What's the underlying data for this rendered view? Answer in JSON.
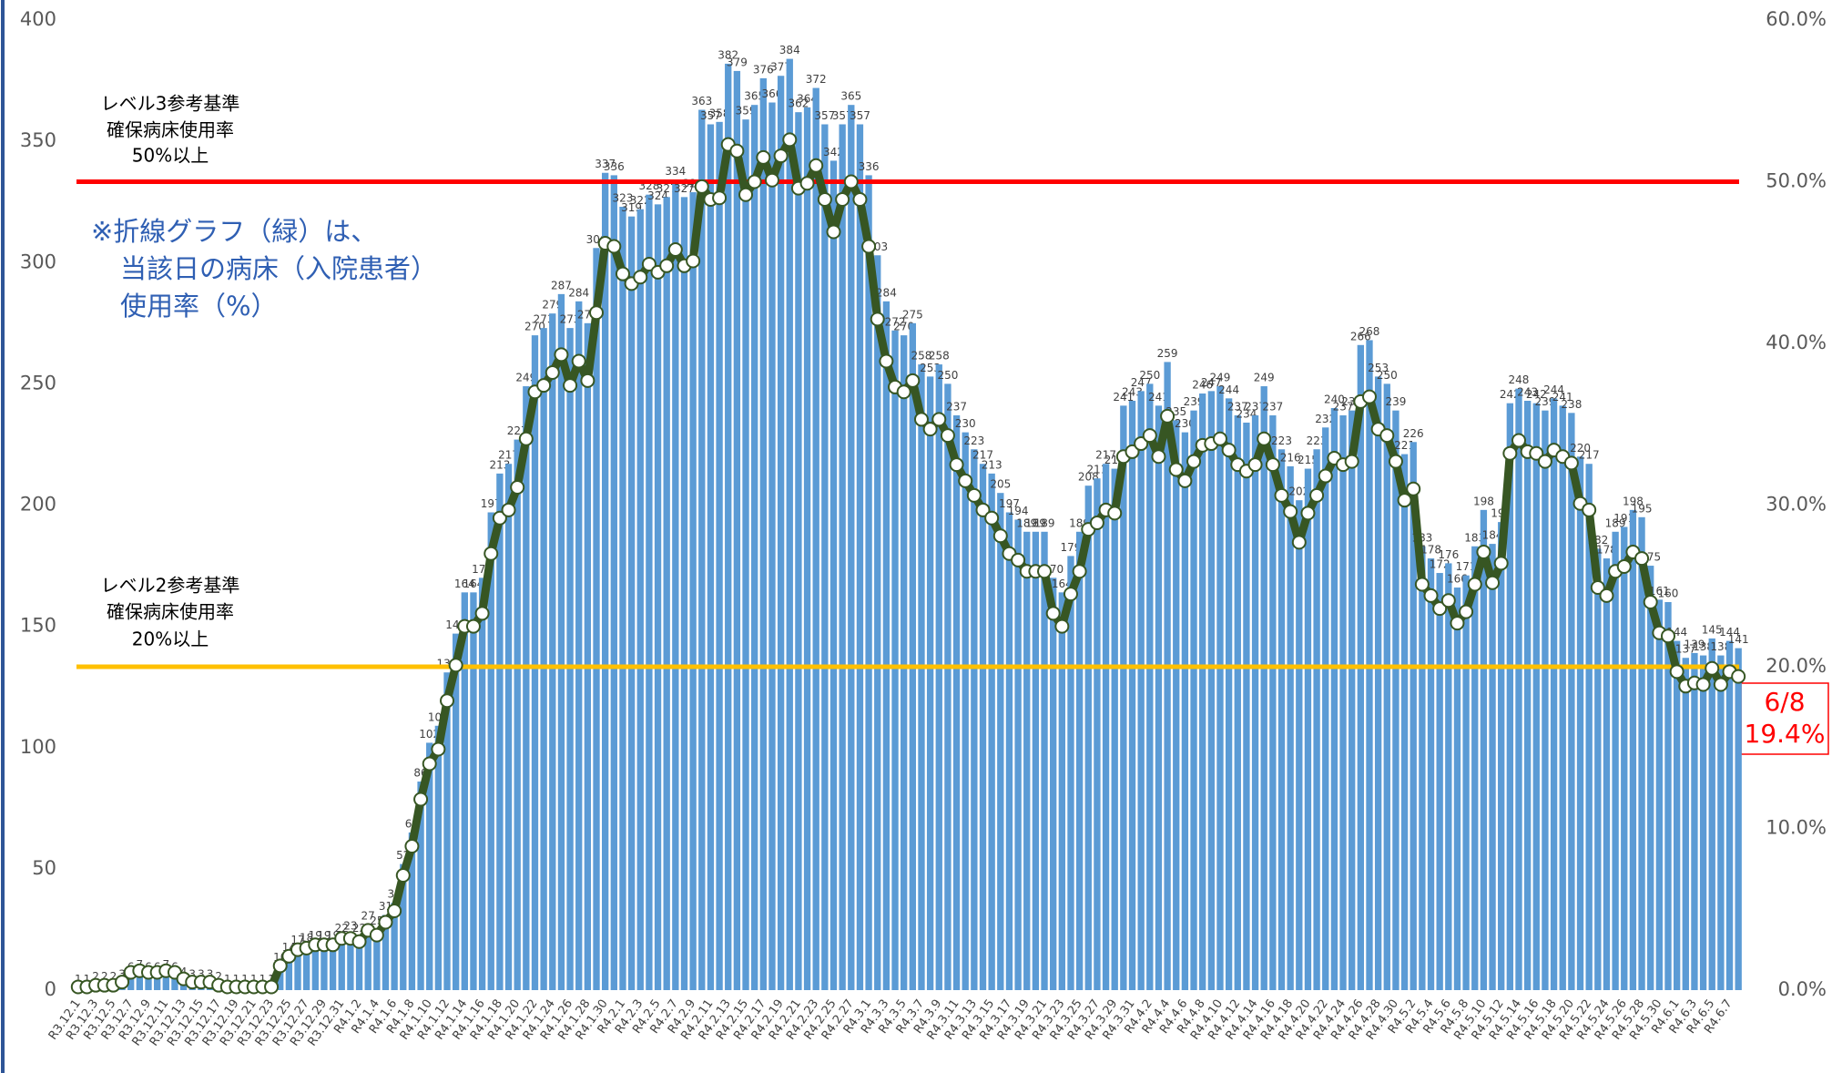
{
  "chart_data": {
    "type": "bar-line",
    "categories": [
      "R3.12.1",
      null,
      "R3.12.3",
      null,
      "R3.12.5",
      null,
      "R3.12.7",
      null,
      "R3.12.9",
      null,
      "R3.12.11",
      null,
      "R3.12.13",
      null,
      "R3.12.15",
      null,
      "R3.12.17",
      null,
      "R3.12.19",
      null,
      "R3.12.21",
      null,
      "R3.12.23",
      null,
      "R3.12.25",
      null,
      "R3.12.27",
      null,
      "R3.12.29",
      null,
      "R3.12.31",
      null,
      "R4.1.2",
      null,
      "R4.1.4",
      null,
      "R4.1.6",
      null,
      "R4.1.8",
      null,
      "R4.1.10",
      null,
      "R4.1.12",
      null,
      "R4.1.14",
      null,
      "R4.1.16",
      null,
      "R4.1.18",
      null,
      "R4.1.20",
      null,
      "R4.1.22",
      null,
      "R4.1.24",
      null,
      "R4.1.26",
      null,
      "R4.1.28",
      null,
      "R4.1.30",
      null,
      "R4.2.1",
      null,
      "R4.2.3",
      null,
      "R4.2.5",
      null,
      "R4.2.7",
      null,
      "R4.2.9",
      null,
      "R4.2.11",
      null,
      "R4.2.13",
      null,
      "R4.2.15",
      null,
      "R4.2.17",
      null,
      "R4.2.19",
      null,
      "R4.2.21",
      null,
      "R4.2.23",
      null,
      "R4.2.25",
      null,
      "R4.2.27",
      null,
      "R4.3.1",
      null,
      "R4.3.3",
      null,
      "R4.3.5",
      null,
      "R4.3.7",
      null,
      "R4.3.9",
      null,
      "R4.3.11",
      null,
      "R4.3.13",
      null,
      "R4.3.15",
      null,
      "R4.3.17",
      null,
      "R4.3.19",
      null,
      "R4.3.21",
      null,
      "R4.3.23",
      null,
      "R4.3.25",
      null,
      "R4.3.27",
      null,
      "R4.3.29",
      null,
      "R4.3.31",
      null,
      "R4.4.2",
      null,
      "R4.4.4",
      null,
      "R4.4.6",
      null,
      "R4.4.8",
      null,
      "R4.4.10",
      null,
      "R4.4.12",
      null,
      "R4.4.14",
      null,
      "R4.4.16",
      null,
      "R4.4.18",
      null,
      "R4.4.20",
      null,
      "R4.4.22",
      null,
      "R4.4.24",
      null,
      "R4.4.26",
      null,
      "R4.4.28",
      null,
      "R4.4.30",
      null,
      "R4.5.2",
      null,
      "R4.5.4",
      null,
      "R4.5.6",
      null,
      "R4.5.8",
      null,
      "R4.5.10",
      null,
      "R4.5.12",
      null,
      "R4.5.14",
      null,
      "R4.5.16",
      null,
      "R4.5.18",
      null,
      "R4.5.20",
      null,
      "R4.5.22",
      null,
      "R4.5.24",
      null,
      "R4.5.26",
      null,
      "R4.5.28",
      null,
      "R4.5.30",
      null,
      "R4.6.1",
      null,
      "R4.6.3",
      null,
      "R4.6.5",
      null,
      "R4.6.7",
      null
    ],
    "series": [
      {
        "type": "bar",
        "color": "#5b9bd5",
        "values": [
          1,
          1,
          2,
          2,
          2,
          3,
          6,
          7,
          6,
          6,
          7,
          6,
          4,
          3,
          3,
          3,
          2,
          1,
          1,
          1,
          1,
          1,
          1,
          10,
          14,
          17,
          18,
          19,
          19,
          19,
          22,
          23,
          22,
          27,
          25,
          31,
          36,
          52,
          65,
          86,
          102,
          109,
          131,
          147,
          164,
          164,
          170,
          197,
          213,
          217,
          227,
          249,
          270,
          273,
          279,
          287,
          273,
          284,
          275,
          306,
          337,
          336,
          323,
          319,
          322,
          328,
          324,
          327,
          334,
          327,
          329,
          363,
          357,
          358,
          382,
          379,
          359,
          365,
          376,
          366,
          377,
          384,
          362,
          364,
          372,
          357,
          342,
          357,
          365,
          357,
          336,
          303,
          284,
          272,
          270,
          275,
          258,
          253,
          258,
          250,
          237,
          230,
          223,
          217,
          213,
          205,
          197,
          194,
          189,
          189,
          189,
          170,
          164,
          179,
          189,
          208,
          211,
          217,
          215,
          241,
          243,
          247,
          250,
          241,
          259,
          235,
          230,
          239,
          246,
          247,
          249,
          244,
          237,
          234,
          237,
          249,
          237,
          223,
          216,
          202,
          215,
          223,
          232,
          240,
          237,
          239,
          266,
          268,
          253,
          250,
          239,
          221,
          226,
          183,
          178,
          172,
          176,
          166,
          171,
          183,
          198,
          184,
          193,
          242,
          248,
          243,
          242,
          239,
          244,
          241,
          238,
          220,
          217,
          182,
          178,
          189,
          191,
          198,
          195,
          175,
          161,
          160,
          144,
          137,
          139,
          138,
          145,
          138,
          144,
          141
        ]
      },
      {
        "type": "line",
        "axis": "y2",
        "color": "#375623",
        "marker_fill": "#ffffff",
        "values": [
          0.2,
          0.2,
          0.3,
          0.3,
          0.3,
          0.5,
          1.1,
          1.2,
          1.1,
          1.1,
          1.2,
          1.1,
          0.7,
          0.5,
          0.5,
          0.5,
          0.3,
          0.2,
          0.2,
          0.2,
          0.2,
          0.2,
          0.2,
          1.5,
          2.1,
          2.5,
          2.6,
          2.8,
          2.8,
          2.8,
          3.2,
          3.2,
          3.0,
          3.7,
          3.4,
          4.2,
          4.9,
          7.1,
          8.9,
          11.8,
          14.0,
          14.9,
          17.9,
          20.1,
          22.5,
          22.5,
          23.3,
          27.0,
          29.2,
          29.7,
          31.1,
          34.1,
          37.0,
          37.4,
          38.2,
          39.3,
          37.4,
          38.9,
          37.7,
          41.9,
          46.2,
          46.0,
          44.3,
          43.7,
          44.1,
          44.9,
          44.4,
          44.8,
          45.8,
          44.8,
          45.1,
          49.7,
          48.9,
          49.0,
          52.3,
          51.9,
          49.2,
          50.0,
          51.5,
          50.1,
          51.6,
          52.6,
          49.6,
          49.9,
          51.0,
          48.9,
          46.9,
          48.9,
          50.0,
          48.9,
          46.0,
          41.5,
          38.9,
          37.3,
          37.0,
          37.7,
          35.3,
          34.7,
          35.3,
          34.3,
          32.5,
          31.5,
          30.6,
          29.7,
          29.2,
          28.1,
          27.0,
          26.6,
          25.9,
          25.9,
          25.9,
          23.3,
          22.5,
          24.5,
          25.9,
          28.5,
          28.9,
          29.7,
          29.5,
          33.0,
          33.3,
          33.8,
          34.3,
          33.0,
          35.5,
          32.2,
          31.5,
          32.7,
          33.7,
          33.8,
          34.1,
          33.4,
          32.5,
          32.1,
          32.5,
          34.1,
          32.5,
          30.6,
          29.6,
          27.7,
          29.5,
          30.6,
          31.8,
          32.9,
          32.5,
          32.7,
          36.4,
          36.7,
          34.7,
          34.3,
          32.7,
          30.3,
          31.0,
          25.1,
          24.4,
          23.6,
          24.1,
          22.7,
          23.4,
          25.1,
          27.1,
          25.2,
          26.4,
          33.2,
          34.0,
          33.3,
          33.2,
          32.7,
          33.4,
          33.0,
          32.6,
          30.1,
          29.7,
          24.9,
          24.4,
          25.9,
          26.2,
          27.1,
          26.7,
          24.0,
          22.1,
          21.9,
          19.7,
          18.8,
          19.0,
          18.9,
          19.9,
          18.9,
          19.7,
          19.4
        ]
      }
    ],
    "ylim": [
      0,
      400
    ],
    "yticks": [
      0,
      50,
      100,
      150,
      200,
      250,
      300,
      350,
      400
    ],
    "y2lim": [
      0,
      60
    ],
    "y2ticks": [
      {
        "value": 0,
        "label": "0.0%"
      },
      {
        "value": 10,
        "label": "10.0%"
      },
      {
        "value": 20,
        "label": "20.0%"
      },
      {
        "value": 30,
        "label": "30.0%"
      },
      {
        "value": 40,
        "label": "40.0%"
      },
      {
        "value": 50,
        "label": "50.0%"
      },
      {
        "value": 60,
        "label": "60.0%"
      }
    ],
    "reference_lines": [
      {
        "value": 50,
        "axis": "y2",
        "color": "#ff0000",
        "label": [
          "レベル3参考基準",
          "確保病床使用率",
          "50%以上"
        ]
      },
      {
        "value": 20,
        "axis": "y2",
        "color": "#ffc000",
        "label": [
          "レベル2参考基準",
          "確保病床使用率",
          "20%以上"
        ]
      }
    ],
    "note": [
      "※折線グラフ（緑）は、",
      "当該日の病床（入院患者）",
      "使用率（%）"
    ],
    "callout": {
      "date": "6/8",
      "label": "19.4%"
    }
  }
}
